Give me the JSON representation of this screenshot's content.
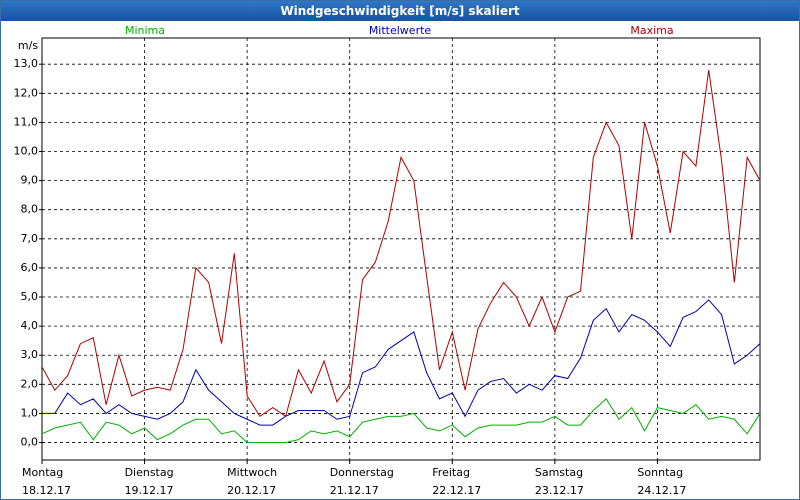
{
  "window_title": "Windgeschwindigkeit [m/s] skaliert",
  "chart_data": {
    "type": "line",
    "y_label": "m/s",
    "x": [
      0,
      3,
      6,
      9,
      12,
      15,
      18,
      21,
      24,
      27,
      30,
      33,
      36,
      39,
      42,
      45,
      48,
      51,
      54,
      57,
      60,
      63,
      66,
      69,
      72,
      75,
      78,
      81,
      84,
      87,
      90,
      93,
      96,
      99,
      102,
      105,
      108,
      111,
      114,
      117,
      120,
      123,
      126,
      129,
      132,
      135,
      138,
      141,
      144,
      147,
      150,
      153,
      156,
      159,
      162,
      165,
      168
    ],
    "xlim": [
      0,
      168
    ],
    "xticks": [
      {
        "value": 0,
        "label": "Montag"
      },
      {
        "value": 24,
        "label": "Dienstag"
      },
      {
        "value": 48,
        "label": "Mittwoch"
      },
      {
        "value": 72,
        "label": "Donnerstag"
      },
      {
        "value": 96,
        "label": "Freitag"
      },
      {
        "value": 120,
        "label": "Samstag"
      },
      {
        "value": 144,
        "label": "Sonntag"
      }
    ],
    "xtick_dates": [
      "18.12.17",
      "19.12.17",
      "20.12.17",
      "21.12.17",
      "22.12.17",
      "23.12.17",
      "24.12.17"
    ],
    "ylim": [
      -0.6,
      13.9
    ],
    "yticks": [
      {
        "value": 0,
        "label": "0,0"
      },
      {
        "value": 1,
        "label": "1,0"
      },
      {
        "value": 2,
        "label": "2,0"
      },
      {
        "value": 3,
        "label": "3,0"
      },
      {
        "value": 4,
        "label": "4,0"
      },
      {
        "value": 5,
        "label": "5,0"
      },
      {
        "value": 6,
        "label": "6,0"
      },
      {
        "value": 7,
        "label": "7,0"
      },
      {
        "value": 8,
        "label": "8,0"
      },
      {
        "value": 9,
        "label": "9,0"
      },
      {
        "value": 10,
        "label": "10,0"
      },
      {
        "value": 11,
        "label": "11,0"
      },
      {
        "value": 12,
        "label": "12,0"
      },
      {
        "value": 13,
        "label": "13,0"
      }
    ],
    "grid": true,
    "series": [
      {
        "name": "Minima",
        "color": "#00b000",
        "values": [
          0.3,
          0.5,
          0.6,
          0.7,
          0.1,
          0.7,
          0.6,
          0.3,
          0.5,
          0.1,
          0.3,
          0.6,
          0.8,
          0.8,
          0.3,
          0.4,
          0.0,
          0.0,
          0.0,
          0.0,
          0.1,
          0.4,
          0.3,
          0.4,
          0.2,
          0.7,
          0.8,
          0.9,
          0.9,
          1.0,
          0.5,
          0.4,
          0.6,
          0.2,
          0.5,
          0.6,
          0.6,
          0.6,
          0.7,
          0.7,
          0.9,
          0.6,
          0.6,
          1.1,
          1.5,
          0.8,
          1.2,
          0.4,
          1.2,
          1.1,
          1.0,
          1.3,
          0.8,
          0.9,
          0.8,
          0.3,
          1.0
        ]
      },
      {
        "name": "Mittelwerte",
        "color": "#0000b0",
        "values": [
          1.0,
          1.0,
          1.7,
          1.3,
          1.5,
          1.0,
          1.3,
          1.0,
          0.9,
          0.8,
          1.0,
          1.4,
          2.5,
          1.8,
          1.4,
          1.0,
          0.8,
          0.6,
          0.6,
          0.9,
          1.1,
          1.1,
          1.1,
          0.8,
          0.9,
          2.4,
          2.6,
          3.2,
          3.5,
          3.8,
          2.4,
          1.5,
          1.7,
          0.9,
          1.8,
          2.1,
          2.2,
          1.7,
          2.0,
          1.8,
          2.3,
          2.2,
          2.9,
          4.2,
          4.6,
          3.8,
          4.4,
          4.2,
          3.8,
          3.3,
          4.3,
          4.5,
          4.9,
          4.4,
          2.7,
          3.0,
          3.4
        ]
      },
      {
        "name": "Maxima",
        "color": "#b00000",
        "values": [
          2.6,
          1.8,
          2.3,
          3.4,
          3.6,
          1.3,
          3.0,
          1.6,
          1.8,
          1.9,
          1.8,
          3.2,
          6.0,
          5.5,
          3.4,
          6.5,
          1.6,
          0.9,
          1.2,
          0.9,
          2.5,
          1.7,
          2.8,
          1.4,
          2.0,
          5.6,
          6.2,
          7.6,
          9.8,
          9.0,
          5.7,
          2.5,
          3.8,
          1.8,
          3.9,
          4.8,
          5.5,
          5.0,
          4.0,
          5.0,
          3.8,
          5.0,
          5.2,
          9.8,
          11.0,
          10.2,
          7.0,
          11.0,
          9.5,
          7.2,
          10.0,
          9.5,
          12.8,
          9.7,
          5.5,
          9.8,
          9.0
        ]
      }
    ]
  }
}
